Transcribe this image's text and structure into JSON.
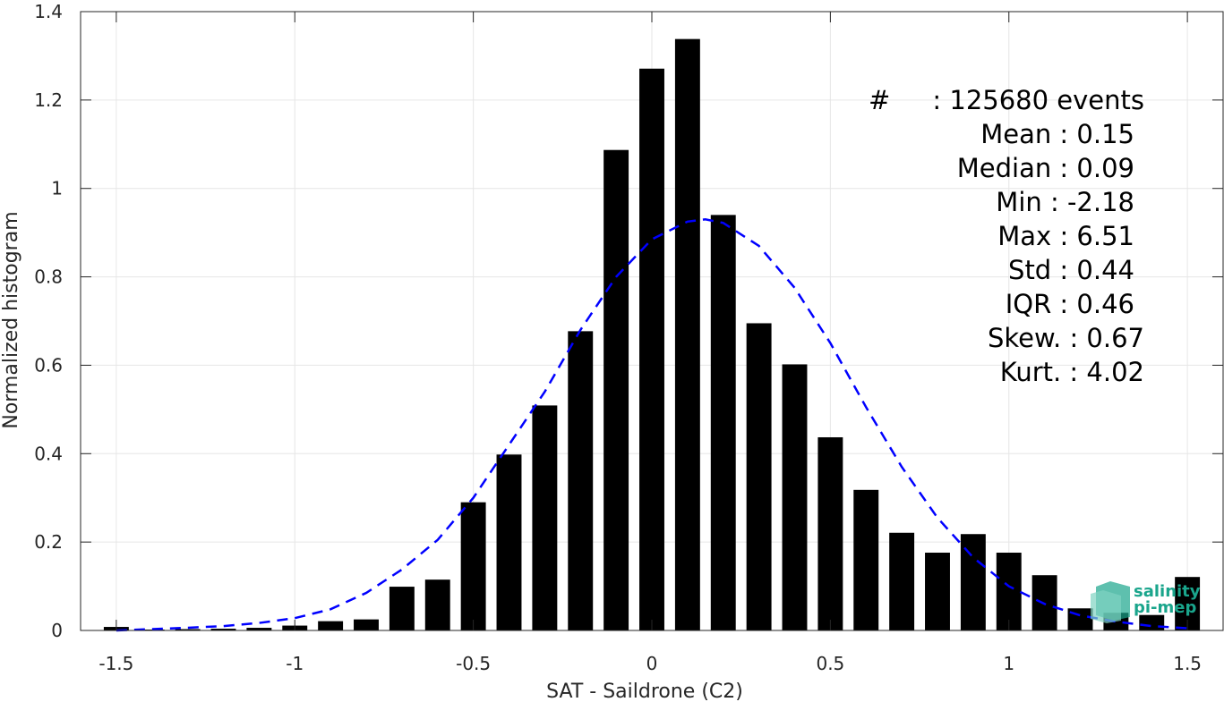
{
  "chart_data": {
    "type": "bar",
    "xlabel": "SAT - Saildrone (C2)",
    "ylabel": "Normalized histogram",
    "xlim": [
      -1.6,
      1.6
    ],
    "ylim": [
      0,
      1.4
    ],
    "grid": true,
    "x_ticks": [
      -1.5,
      -1,
      -0.5,
      0,
      0.5,
      1,
      1.5
    ],
    "x_tick_labels": [
      "-1.5",
      "-1",
      "-0.5",
      "0",
      "0.5",
      "1",
      "1.5"
    ],
    "y_ticks": [
      0,
      0.2,
      0.4,
      0.6,
      0.8,
      1,
      1.2,
      1.4
    ],
    "y_tick_labels": [
      "0",
      "0.2",
      "0.4",
      "0.6",
      "0.8",
      "1",
      "1.2",
      "1.4"
    ],
    "bar_width": 0.07,
    "bar_color": "#000000",
    "bars": {
      "x": [
        -1.5,
        -1.4,
        -1.3,
        -1.2,
        -1.1,
        -1.0,
        -0.9,
        -0.8,
        -0.7,
        -0.6,
        -0.5,
        -0.4,
        -0.3,
        -0.2,
        -0.1,
        0.0,
        0.1,
        0.2,
        0.3,
        0.4,
        0.5,
        0.6,
        0.7,
        0.8,
        0.9,
        1.0,
        1.1,
        1.2,
        1.3,
        1.4,
        1.5
      ],
      "values": [
        0.008,
        0.002,
        0.003,
        0.004,
        0.006,
        0.011,
        0.021,
        0.025,
        0.099,
        0.115,
        0.29,
        0.398,
        0.509,
        0.677,
        1.087,
        1.271,
        1.338,
        0.94,
        0.695,
        0.602,
        0.437,
        0.318,
        0.221,
        0.176,
        0.218,
        0.176,
        0.125,
        0.05,
        0.04,
        0.035,
        0.121
      ]
    },
    "fit_curve": {
      "style": "dashed",
      "color": "#0000ff",
      "x": [
        -1.5,
        -1.4,
        -1.3,
        -1.2,
        -1.1,
        -1.0,
        -0.9,
        -0.8,
        -0.7,
        -0.6,
        -0.5,
        -0.4,
        -0.3,
        -0.2,
        -0.1,
        0.0,
        0.1,
        0.15,
        0.2,
        0.3,
        0.4,
        0.5,
        0.6,
        0.7,
        0.8,
        0.9,
        1.0,
        1.1,
        1.2,
        1.3,
        1.4,
        1.5
      ],
      "values": [
        0.0,
        0.003,
        0.006,
        0.01,
        0.017,
        0.028,
        0.048,
        0.085,
        0.138,
        0.205,
        0.3,
        0.42,
        0.54,
        0.68,
        0.8,
        0.885,
        0.925,
        0.93,
        0.922,
        0.87,
        0.775,
        0.65,
        0.505,
        0.37,
        0.255,
        0.165,
        0.1,
        0.06,
        0.034,
        0.02,
        0.01,
        0.005
      ]
    },
    "stats": {
      "count_label": "#",
      "count_value": ": 125680 events",
      "lines": [
        "Mean : 0.15",
        "Median : 0.09",
        "Min : -2.18",
        "Max : 6.51",
        "Std : 0.44",
        "IQR : 0.46",
        "Skew. : 0.67",
        "Kurt. : 4.02"
      ]
    }
  },
  "logo": {
    "line1": "salinity",
    "line2": "pi-mep",
    "color": "#1aa58c"
  }
}
